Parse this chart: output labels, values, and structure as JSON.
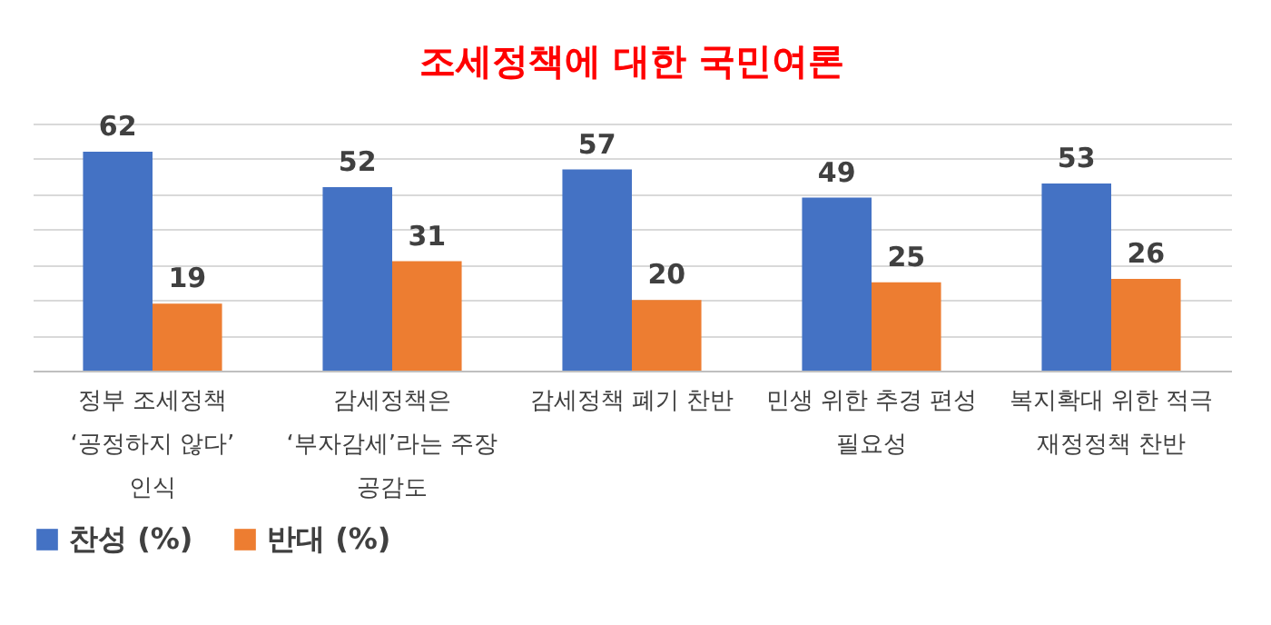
{
  "chart_data": {
    "type": "bar",
    "title": "조세정책에 대한 국민여론",
    "categories": [
      "정부 조세정책 ‘공정하지 않다’ 인식",
      "감세정책은 ‘부자감세’라는 주장 공감도",
      "감세정책 폐기 찬반",
      "민생 위한 추경 편성 필요성",
      "복지확대 위한 적극 재정정책 찬반"
    ],
    "series": [
      {
        "name": "찬성 (%)",
        "color": "#4472c4",
        "values": [
          62,
          52,
          57,
          49,
          53
        ]
      },
      {
        "name": "반대 (%)",
        "color": "#ed7d31",
        "values": [
          19,
          31,
          20,
          25,
          26
        ]
      }
    ],
    "grid": "y",
    "tick_labels": "x",
    "data_labels": true,
    "legend": "bottom"
  }
}
